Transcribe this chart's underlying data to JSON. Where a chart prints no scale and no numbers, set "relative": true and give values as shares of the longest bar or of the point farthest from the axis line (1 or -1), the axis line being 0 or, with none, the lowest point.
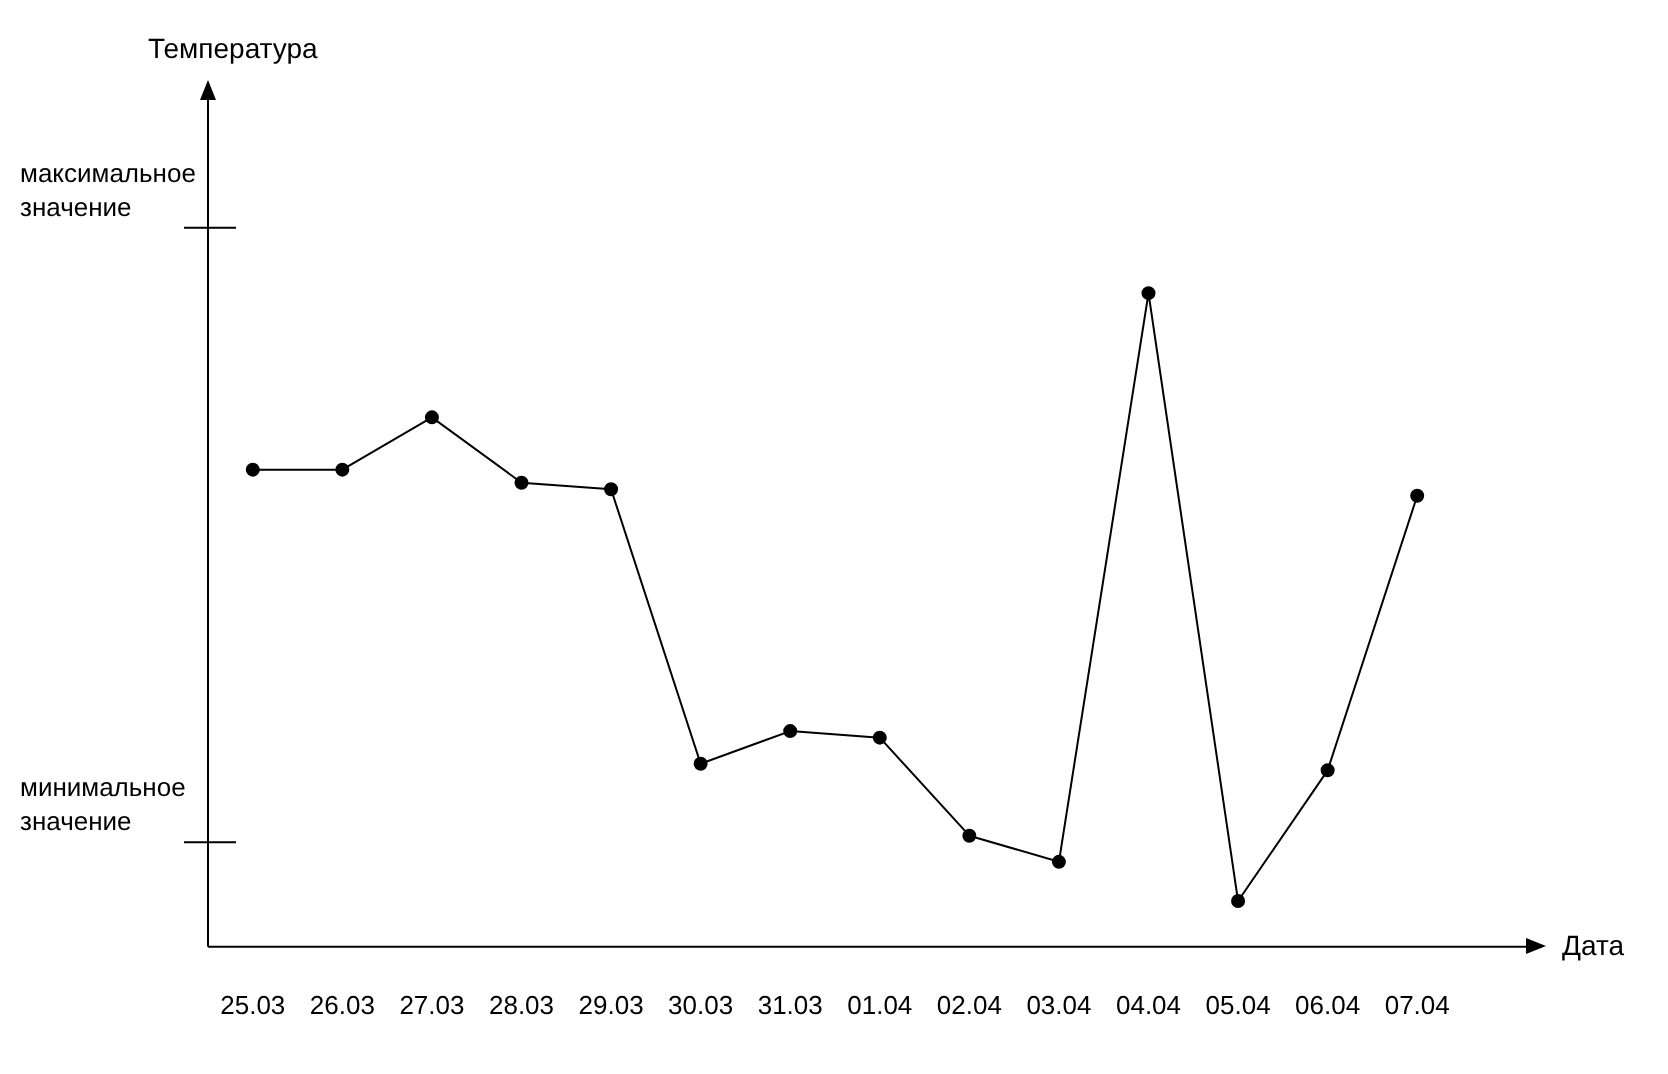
{
  "chart_data": {
    "type": "line",
    "annotations": [
      "Температура"
    ],
    "xlabel": "Дата",
    "relative": true,
    "categories": [
      "25.03",
      "26.03",
      "27.03",
      "28.03",
      "29.03",
      "30.03",
      "31.03",
      "01.04",
      "02.04",
      "03.04",
      "04.04",
      "05.04",
      "06.04",
      "07.04"
    ],
    "series": [
      {
        "color": "#000000",
        "values": [
          0.73,
          0.73,
          0.81,
          0.71,
          0.7,
          0.28,
          0.33,
          0.32,
          0.17,
          0.13,
          1,
          0.07,
          0.27,
          0.69
        ]
      }
    ],
    "ref_lines": [
      {
        "axis": "y",
        "value": 1.1,
        "label": "максимальное значение"
      },
      {
        "axis": "y",
        "value": 0.16,
        "label": "минимальное значение"
      }
    ],
    "marker": "circle",
    "line_style": "solid"
  }
}
